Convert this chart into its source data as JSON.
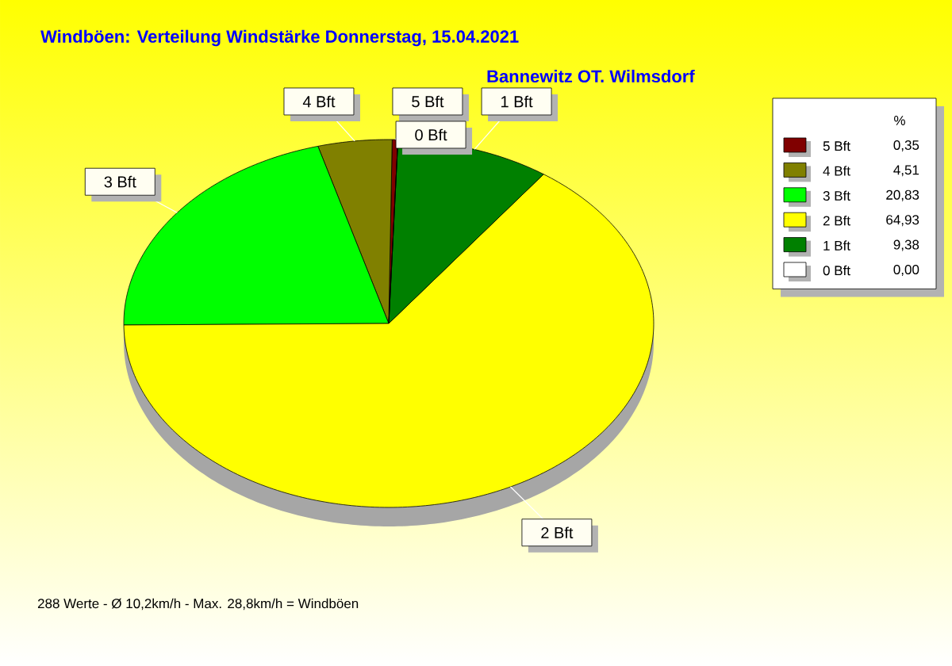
{
  "chart_data": {
    "type": "pie",
    "title": "Windböen: Verteilung Windstärke  Donnerstag, 15.04.2021",
    "subtitle": "Bannewitz OT. Wilmsdorf",
    "categories": [
      "5 Bft",
      "4 Bft",
      "3 Bft",
      "2 Bft",
      "1 Bft",
      "0 Bft"
    ],
    "values": [
      0.35,
      4.51,
      20.83,
      64.93,
      9.38,
      0.0
    ],
    "value_labels": [
      "0,35",
      "4,51",
      "20,83",
      "64,93",
      "9,38",
      "0,00"
    ],
    "colors": [
      "#800000",
      "#808000",
      "#00ff00",
      "#ffff00",
      "#008000",
      "#ffffff"
    ],
    "legend": "top right",
    "legend_title": "%",
    "annotations": [
      "288 Werte   -   Ø 10,2km/h  -  Max. 28,8km/h = Windböen"
    ]
  }
}
